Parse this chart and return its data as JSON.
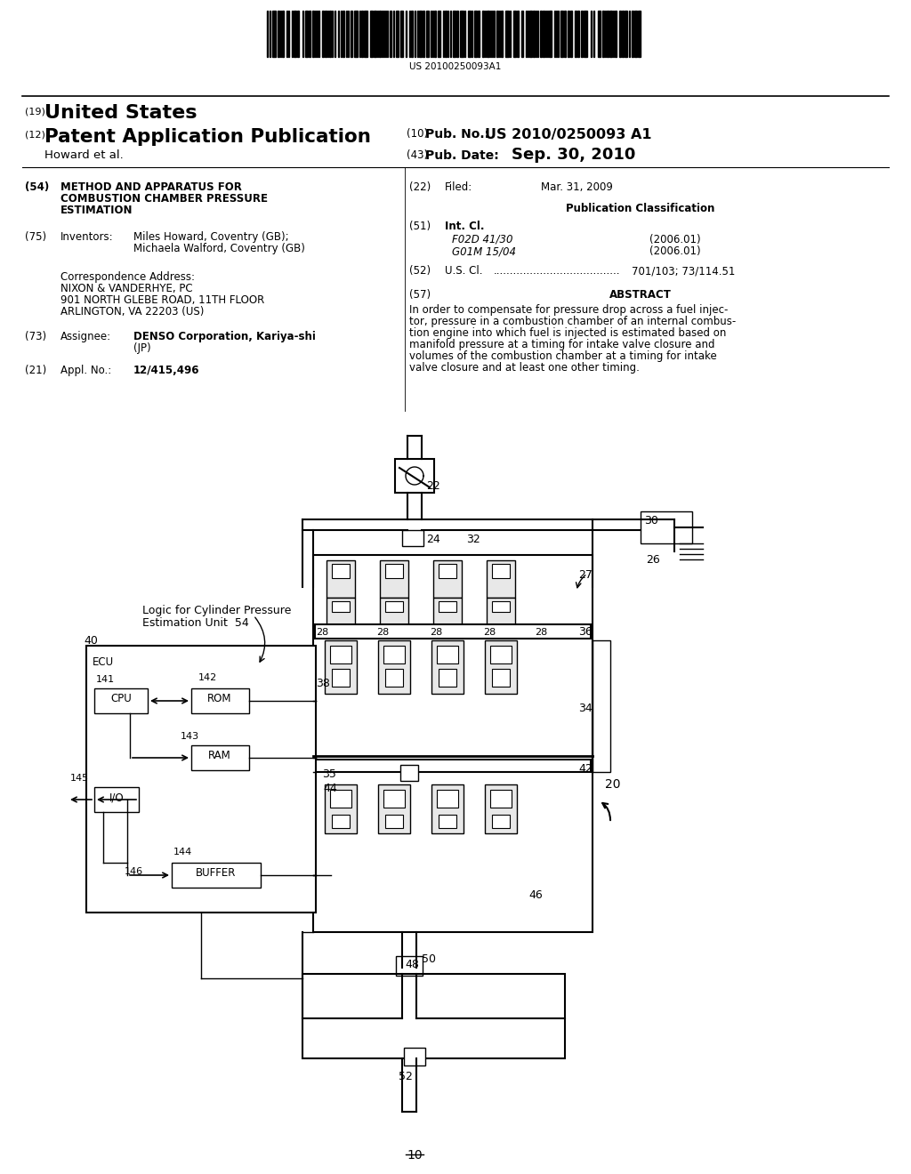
{
  "bg_color": "#ffffff",
  "barcode_text": "US 20100250093A1",
  "label_19": "(19)",
  "title_us": "United States",
  "label_12": "(12)",
  "title_pub": "Patent Application Publication",
  "label_10": "(10)",
  "pub_no_label": "Pub. No.:",
  "pub_no": "US 2010/0250093 A1",
  "inventor_name": "Howard et al.",
  "label_43": "(43)",
  "pub_date_label": "Pub. Date:",
  "pub_date": "Sep. 30, 2010",
  "label_54": "(54)",
  "title_invention_1": "METHOD AND APPARATUS FOR",
  "title_invention_2": "COMBUSTION CHAMBER PRESSURE",
  "title_invention_3": "ESTIMATION",
  "label_22_text": "(22)",
  "filed_label": "Filed:",
  "filed_date": "Mar. 31, 2009",
  "label_75": "(75)",
  "inventors_label": "Inventors:",
  "inventor1": "Miles Howard, Coventry (GB);",
  "inventor2": "Michaela Walford, Coventry (GB)",
  "pub_class_header": "Publication Classification",
  "label_51": "(51)",
  "int_cl_label": "Int. Cl.",
  "int_cl_1": "F02D 41/30",
  "int_cl_1_date": "(2006.01)",
  "int_cl_2": "G01M 15/04",
  "int_cl_2_date": "(2006.01)",
  "corr_label": "Correspondence Address:",
  "corr_1": "NIXON & VANDERHYE, PC",
  "corr_2": "901 NORTH GLEBE ROAD, 11TH FLOOR",
  "corr_3": "ARLINGTON, VA 22203 (US)",
  "label_52": "(52)",
  "us_cl_value": "701/103; 73/114.51",
  "label_73": "(73)",
  "assignee_label": "Assignee:",
  "assignee_1": "DENSO Corporation, Kariya-shi",
  "assignee_2": "(JP)",
  "label_57": "(57)",
  "abstract_header": "ABSTRACT",
  "abstract_1": "In order to compensate for pressure drop across a fuel injec-",
  "abstract_2": "tor, pressure in a combustion chamber of an internal combus-",
  "abstract_3": "tion engine into which fuel is injected is estimated based on",
  "abstract_4": "manifold pressure at a timing for intake valve closure and",
  "abstract_5": "volumes of the combustion chamber at a timing for intake",
  "abstract_6": "valve closure and at least one other timing.",
  "label_21": "(21)",
  "appl_no": "12/415,496",
  "fig_label": "10",
  "d22": "22",
  "d24": "24",
  "d26": "26",
  "d27": "27",
  "d28": "28",
  "d30": "30",
  "d32": "32",
  "d34": "34",
  "d35": "35",
  "d36": "36",
  "d38": "38",
  "d40": "40",
  "d42": "42",
  "d44": "44",
  "d46": "46",
  "d48": "48",
  "d50": "50",
  "d52": "52",
  "d20": "20",
  "ecu_label": "ECU",
  "cpu_label": "CPU",
  "rom_label": "ROM",
  "ram_label": "RAM",
  "io_label": "I/O",
  "buffer_label": "BUFFER",
  "logic_label1": "Logic for Cylinder Pressure",
  "logic_label2": "Estimation Unit  54",
  "label_141": "141",
  "label_142": "142",
  "label_143": "143",
  "label_144": "144",
  "label_145": "145",
  "label_146": "146"
}
